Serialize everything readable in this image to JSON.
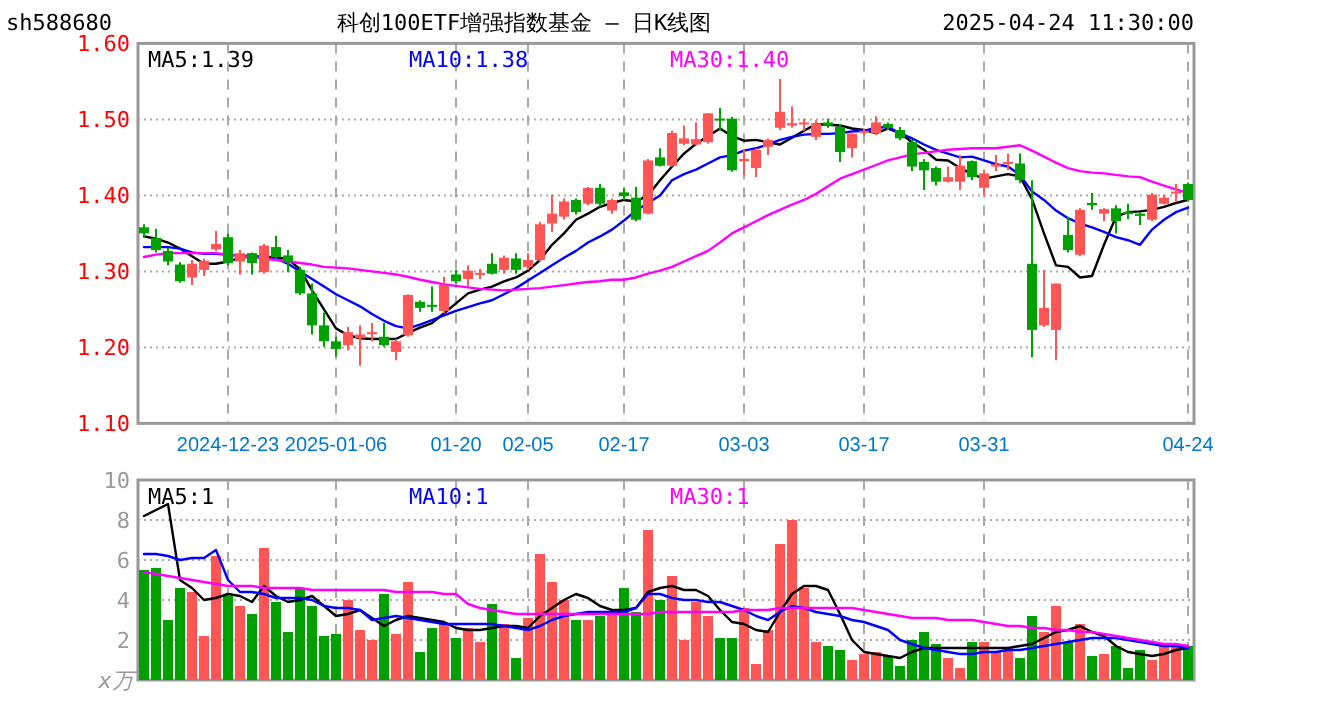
{
  "chart_data": [
    {
      "type": "candlestick",
      "title": "科创100ETF增强指数基金 — 日K线图",
      "annotations": [
        "sh588680",
        "2025-04-24 11:30:00"
      ],
      "categories": [
        null,
        null,
        null,
        null,
        null,
        null,
        null,
        "2024-12-23",
        null,
        null,
        null,
        null,
        null,
        null,
        null,
        null,
        "2025-01-06",
        null,
        null,
        null,
        null,
        null,
        null,
        null,
        null,
        null,
        "01-20",
        null,
        null,
        null,
        null,
        null,
        "02-05",
        null,
        null,
        null,
        null,
        null,
        null,
        null,
        "02-17",
        null,
        null,
        null,
        null,
        null,
        null,
        null,
        null,
        null,
        "03-03",
        null,
        null,
        null,
        null,
        null,
        null,
        null,
        null,
        null,
        "03-17",
        null,
        null,
        null,
        null,
        null,
        null,
        null,
        null,
        null,
        "03-31",
        null,
        null,
        null,
        null,
        null,
        null,
        null,
        null,
        null,
        null,
        null,
        null,
        null,
        null,
        null,
        null,
        "04-24"
      ],
      "ohlc": [
        [
          1.358,
          1.362,
          1.344,
          1.35
        ],
        [
          1.344,
          1.356,
          1.325,
          1.328
        ],
        [
          1.327,
          1.331,
          1.308,
          1.313
        ],
        [
          1.309,
          1.312,
          1.285,
          1.287
        ],
        [
          1.292,
          1.315,
          1.282,
          1.31
        ],
        [
          1.302,
          1.317,
          1.294,
          1.314
        ],
        [
          1.329,
          1.353,
          1.327,
          1.336
        ],
        [
          1.345,
          1.35,
          1.308,
          1.311
        ],
        [
          1.313,
          1.328,
          1.296,
          1.324
        ],
        [
          1.324,
          1.325,
          1.296,
          1.311
        ],
        [
          1.299,
          1.336,
          1.297,
          1.334
        ],
        [
          1.332,
          1.347,
          1.317,
          1.319
        ],
        [
          1.321,
          1.328,
          1.299,
          1.312
        ],
        [
          1.302,
          1.306,
          1.269,
          1.271
        ],
        [
          1.271,
          1.284,
          1.217,
          1.229
        ],
        [
          1.229,
          1.246,
          1.201,
          1.208
        ],
        [
          1.208,
          1.214,
          1.188,
          1.198
        ],
        [
          1.203,
          1.227,
          1.196,
          1.22
        ],
        [
          1.212,
          1.229,
          1.176,
          1.217
        ],
        [
          1.218,
          1.232,
          1.208,
          1.22
        ],
        [
          1.214,
          1.232,
          1.201,
          1.203
        ],
        [
          1.194,
          1.211,
          1.183,
          1.208
        ],
        [
          1.216,
          1.27,
          1.214,
          1.269
        ],
        [
          1.26,
          1.262,
          1.247,
          1.252
        ],
        [
          1.256,
          1.28,
          1.247,
          1.254
        ],
        [
          1.248,
          1.293,
          1.245,
          1.282
        ],
        [
          1.296,
          1.302,
          1.284,
          1.287
        ],
        [
          1.29,
          1.308,
          1.28,
          1.301
        ],
        [
          1.296,
          1.303,
          1.29,
          1.298
        ],
        [
          1.31,
          1.324,
          1.296,
          1.297
        ],
        [
          1.302,
          1.321,
          1.297,
          1.318
        ],
        [
          1.317,
          1.324,
          1.297,
          1.302
        ],
        [
          1.306,
          1.324,
          1.302,
          1.315
        ],
        [
          1.315,
          1.365,
          1.313,
          1.362
        ],
        [
          1.363,
          1.401,
          1.352,
          1.376
        ],
        [
          1.372,
          1.396,
          1.368,
          1.392
        ],
        [
          1.394,
          1.396,
          1.375,
          1.378
        ],
        [
          1.389,
          1.411,
          1.387,
          1.41
        ],
        [
          1.41,
          1.415,
          1.385,
          1.389
        ],
        [
          1.38,
          1.396,
          1.376,
          1.394
        ],
        [
          1.404,
          1.41,
          1.394,
          1.399
        ],
        [
          1.397,
          1.411,
          1.366,
          1.368
        ],
        [
          1.376,
          1.448,
          1.375,
          1.446
        ],
        [
          1.45,
          1.462,
          1.438,
          1.439
        ],
        [
          1.439,
          1.485,
          1.438,
          1.482
        ],
        [
          1.468,
          1.492,
          1.466,
          1.475
        ],
        [
          1.467,
          1.496,
          1.466,
          1.474
        ],
        [
          1.47,
          1.508,
          1.468,
          1.508
        ],
        [
          1.501,
          1.515,
          1.485,
          1.499
        ],
        [
          1.501,
          1.503,
          1.431,
          1.433
        ],
        [
          1.445,
          1.46,
          1.427,
          1.448
        ],
        [
          1.436,
          1.462,
          1.424,
          1.46
        ],
        [
          1.464,
          1.475,
          1.453,
          1.473
        ],
        [
          1.489,
          1.553,
          1.486,
          1.51
        ],
        [
          1.492,
          1.517,
          1.489,
          1.495
        ],
        [
          1.494,
          1.501,
          1.485,
          1.496
        ],
        [
          1.477,
          1.499,
          1.473,
          1.495
        ],
        [
          1.496,
          1.501,
          1.489,
          1.492
        ],
        [
          1.49,
          1.494,
          1.444,
          1.457
        ],
        [
          1.462,
          1.483,
          1.45,
          1.481
        ],
        [
          1.483,
          1.488,
          1.479,
          1.485
        ],
        [
          1.482,
          1.504,
          1.479,
          1.496
        ],
        [
          1.494,
          1.496,
          1.486,
          1.489
        ],
        [
          1.486,
          1.49,
          1.473,
          1.475
        ],
        [
          1.47,
          1.473,
          1.432,
          1.438
        ],
        [
          1.444,
          1.448,
          1.407,
          1.433
        ],
        [
          1.436,
          1.438,
          1.413,
          1.418
        ],
        [
          1.418,
          1.438,
          1.417,
          1.424
        ],
        [
          1.418,
          1.453,
          1.407,
          1.439
        ],
        [
          1.445,
          1.446,
          1.42,
          1.424
        ],
        [
          1.41,
          1.433,
          1.401,
          1.429
        ],
        [
          1.438,
          1.453,
          1.432,
          1.441
        ],
        [
          1.442,
          1.455,
          1.433,
          1.444
        ],
        [
          1.442,
          1.455,
          1.416,
          1.42
        ],
        [
          1.31,
          1.42,
          1.187,
          1.223
        ],
        [
          1.229,
          1.302,
          1.227,
          1.252
        ],
        [
          1.223,
          1.284,
          1.183,
          1.284
        ],
        [
          1.348,
          1.372,
          1.325,
          1.328
        ],
        [
          1.322,
          1.383,
          1.32,
          1.381
        ],
        [
          1.39,
          1.403,
          1.381,
          1.387
        ],
        [
          1.376,
          1.383,
          1.366,
          1.382
        ],
        [
          1.383,
          1.387,
          1.35,
          1.366
        ],
        [
          1.378,
          1.389,
          1.369,
          1.376
        ],
        [
          1.376,
          1.378,
          1.361,
          1.373
        ],
        [
          1.368,
          1.403,
          1.366,
          1.401
        ],
        [
          1.389,
          1.401,
          1.388,
          1.397
        ],
        [
          1.403,
          1.415,
          1.392,
          1.405
        ],
        [
          1.415,
          1.417,
          1.392,
          1.394
        ]
      ],
      "colors": [
        "#00a000",
        "#00a000",
        "#00a000",
        "#00a000",
        "#ff5555",
        "#ff5555",
        "#ff5555",
        "#00a000",
        "#ff5555",
        "#00a000",
        "#ff5555",
        "#00a000",
        "#00a000",
        "#00a000",
        "#00a000",
        "#00a000",
        "#00a000",
        "#ff5555",
        "#ff5555",
        "#ff5555",
        "#00a000",
        "#ff5555",
        "#ff5555",
        "#00a000",
        "#00a000",
        "#ff5555",
        "#00a000",
        "#ff5555",
        "#ff5555",
        "#00a000",
        "#ff5555",
        "#00a000",
        "#ff5555",
        "#ff5555",
        "#ff5555",
        "#ff5555",
        "#00a000",
        "#ff5555",
        "#00a000",
        "#ff5555",
        "#00a000",
        "#00a000",
        "#ff5555",
        "#00a000",
        "#ff5555",
        "#ff5555",
        "#ff5555",
        "#ff5555",
        "#00a000",
        "#00a000",
        "#ff5555",
        "#ff5555",
        "#ff5555",
        "#ff5555",
        "#ff5555",
        "#ff5555",
        "#ff5555",
        "#00a000",
        "#00a000",
        "#ff5555",
        "#ff5555",
        "#ff5555",
        "#00a000",
        "#00a000",
        "#00a000",
        "#00a000",
        "#00a000",
        "#ff5555",
        "#ff5555",
        "#00a000",
        "#ff5555",
        "#ff5555",
        "#ff5555",
        "#00a000",
        "#00a000",
        "#ff5555",
        "#ff5555",
        "#00a000",
        "#ff5555",
        "#00a000",
        "#ff5555",
        "#00a000",
        "#00a000",
        "#00a000",
        "#ff5555",
        "#ff5555",
        "#ff5555",
        "#00a000"
      ],
      "series": [
        {
          "type": "line",
          "name": "MA5:1.39",
          "color": "#000000",
          "values": [
            1.346,
            1.343,
            1.338,
            1.33,
            1.32,
            1.31,
            1.31,
            1.313,
            1.318,
            1.32,
            1.319,
            1.319,
            1.316,
            1.303,
            1.275,
            1.25,
            1.225,
            1.216,
            1.212,
            1.211,
            1.211,
            1.211,
            1.219,
            1.226,
            1.232,
            1.245,
            1.258,
            1.271,
            1.276,
            1.28,
            1.287,
            1.292,
            1.301,
            1.315,
            1.335,
            1.35,
            1.368,
            1.376,
            1.385,
            1.39,
            1.394,
            1.392,
            1.4,
            1.42,
            1.438,
            1.455,
            1.468,
            1.478,
            1.488,
            1.478,
            1.472,
            1.473,
            1.47,
            1.467,
            1.476,
            1.485,
            1.494,
            1.493,
            1.492,
            1.488,
            1.486,
            1.482,
            1.488,
            1.482,
            1.47,
            1.46,
            1.447,
            1.446,
            1.436,
            1.428,
            1.422,
            1.425,
            1.428,
            1.425,
            1.395,
            1.35,
            1.308,
            1.306,
            1.292,
            1.294,
            1.335,
            1.372,
            1.378,
            1.379,
            1.381,
            1.385,
            1.39,
            1.394
          ]
        },
        {
          "type": "line",
          "name": "MA10:1.38",
          "color": "#0000ff",
          "values": [
            1.332,
            1.332,
            1.332,
            1.33,
            1.325,
            1.323,
            1.323,
            1.322,
            1.321,
            1.32,
            1.318,
            1.317,
            1.31,
            1.3,
            1.29,
            1.28,
            1.27,
            1.262,
            1.254,
            1.244,
            1.235,
            1.228,
            1.225,
            1.23,
            1.236,
            1.242,
            1.248,
            1.253,
            1.258,
            1.262,
            1.27,
            1.278,
            1.288,
            1.298,
            1.308,
            1.318,
            1.327,
            1.338,
            1.346,
            1.355,
            1.367,
            1.38,
            1.39,
            1.4,
            1.42,
            1.428,
            1.434,
            1.442,
            1.45,
            1.453,
            1.459,
            1.462,
            1.467,
            1.473,
            1.477,
            1.48,
            1.481,
            1.481,
            1.482,
            1.484,
            1.485,
            1.489,
            1.49,
            1.482,
            1.475,
            1.467,
            1.46,
            1.455,
            1.45,
            1.451,
            1.446,
            1.441,
            1.438,
            1.427,
            1.405,
            1.394,
            1.38,
            1.37,
            1.363,
            1.358,
            1.352,
            1.345,
            1.341,
            1.335,
            1.355,
            1.368,
            1.378,
            1.384
          ]
        },
        {
          "type": "line",
          "name": "MA30:1.40",
          "color": "#ff00ff",
          "values": [
            1.319,
            1.322,
            1.324,
            1.324,
            1.324,
            1.324,
            1.324,
            1.322,
            1.32,
            1.319,
            1.317,
            1.315,
            1.313,
            1.311,
            1.309,
            1.306,
            1.305,
            1.304,
            1.302,
            1.3,
            1.298,
            1.296,
            1.293,
            1.289,
            1.286,
            1.283,
            1.281,
            1.279,
            1.277,
            1.276,
            1.275,
            1.276,
            1.277,
            1.278,
            1.28,
            1.282,
            1.284,
            1.286,
            1.287,
            1.289,
            1.289,
            1.292,
            1.297,
            1.301,
            1.306,
            1.313,
            1.32,
            1.327,
            1.338,
            1.35,
            1.358,
            1.366,
            1.374,
            1.381,
            1.388,
            1.394,
            1.402,
            1.412,
            1.422,
            1.428,
            1.434,
            1.44,
            1.446,
            1.45,
            1.454,
            1.456,
            1.458,
            1.46,
            1.461,
            1.462,
            1.462,
            1.462,
            1.464,
            1.466,
            1.459,
            1.451,
            1.443,
            1.436,
            1.432,
            1.43,
            1.429,
            1.427,
            1.425,
            1.424,
            1.418,
            1.413,
            1.408,
            1.403
          ]
        }
      ],
      "ylim": [
        1.1,
        1.6
      ],
      "yticks": [
        {
          "value": 1.1,
          "label": "1.10"
        },
        {
          "value": 1.2,
          "label": "1.20"
        },
        {
          "value": 1.3,
          "label": "1.30"
        },
        {
          "value": 1.4,
          "label": "1.40"
        },
        {
          "value": 1.5,
          "label": "1.50"
        },
        {
          "value": 1.6,
          "label": "1.60"
        }
      ],
      "grid": true,
      "legend": "top"
    },
    {
      "type": "bar",
      "ylabel": "x万",
      "categories": [
        null,
        null,
        null,
        null,
        null,
        null,
        null,
        null,
        null,
        null,
        null,
        null,
        null,
        null,
        null,
        null,
        null,
        null,
        null,
        null,
        null,
        null,
        null,
        null,
        null,
        null,
        null,
        null,
        null,
        null,
        null,
        null,
        null,
        null,
        null,
        null,
        null,
        null,
        null,
        null,
        null,
        null,
        null,
        null,
        null,
        null,
        null,
        null,
        null,
        null,
        null,
        null,
        null,
        null,
        null,
        null,
        null,
        null,
        null,
        null,
        null,
        null,
        null,
        null,
        null,
        null,
        null,
        null,
        null,
        null,
        null,
        null,
        null,
        null,
        null,
        null,
        null,
        null,
        null,
        null,
        null,
        null,
        null,
        null,
        null,
        null,
        null,
        null
      ],
      "series": [
        {
          "type": "bar",
          "colors": [
            "#00a000",
            "#00a000",
            "#00a000",
            "#00a000",
            "#ff5555",
            "#ff5555",
            "#ff5555",
            "#00a000",
            "#ff5555",
            "#00a000",
            "#ff5555",
            "#00a000",
            "#00a000",
            "#00a000",
            "#00a000",
            "#00a000",
            "#00a000",
            "#ff5555",
            "#ff5555",
            "#ff5555",
            "#00a000",
            "#ff5555",
            "#ff5555",
            "#00a000",
            "#00a000",
            "#ff5555",
            "#00a000",
            "#ff5555",
            "#ff5555",
            "#00a000",
            "#ff5555",
            "#00a000",
            "#ff5555",
            "#ff5555",
            "#ff5555",
            "#ff5555",
            "#00a000",
            "#ff5555",
            "#00a000",
            "#ff5555",
            "#00a000",
            "#00a000",
            "#ff5555",
            "#00a000",
            "#ff5555",
            "#ff5555",
            "#ff5555",
            "#ff5555",
            "#00a000",
            "#00a000",
            "#ff5555",
            "#ff5555",
            "#ff5555",
            "#ff5555",
            "#ff5555",
            "#ff5555",
            "#ff5555",
            "#00a000",
            "#00a000",
            "#ff5555",
            "#ff5555",
            "#ff5555",
            "#00a000",
            "#00a000",
            "#00a000",
            "#00a000",
            "#00a000",
            "#ff5555",
            "#ff5555",
            "#00a000",
            "#ff5555",
            "#ff5555",
            "#ff5555",
            "#00a000",
            "#00a000",
            "#ff5555",
            "#ff5555",
            "#00a000",
            "#ff5555",
            "#00a000",
            "#ff5555",
            "#00a000",
            "#00a000",
            "#00a000",
            "#ff5555",
            "#ff5555",
            "#ff5555",
            "#00a000"
          ],
          "values": [
            5.5,
            5.6,
            3.0,
            4.6,
            4.4,
            2.2,
            6.2,
            4.2,
            3.7,
            3.3,
            6.6,
            3.9,
            2.4,
            4.6,
            3.7,
            2.2,
            2.3,
            4.0,
            2.5,
            2.0,
            4.3,
            2.3,
            4.9,
            1.4,
            2.6,
            2.8,
            2.1,
            2.6,
            1.9,
            3.8,
            2.8,
            1.1,
            3.1,
            6.3,
            4.9,
            4.0,
            3.0,
            3.0,
            3.2,
            3.3,
            4.6,
            3.4,
            7.5,
            4.0,
            5.2,
            2.0,
            3.9,
            3.2,
            2.1,
            2.1,
            3.6,
            0.8,
            2.5,
            6.8,
            8.0,
            4.6,
            1.9,
            1.7,
            1.5,
            1.0,
            1.3,
            1.4,
            1.2,
            0.7,
            2.0,
            2.4,
            1.8,
            1.1,
            0.6,
            1.9,
            1.9,
            1.4,
            1.6,
            1.1,
            3.2,
            2.4,
            3.7,
            1.9,
            2.8,
            1.2,
            1.3,
            1.7,
            0.6,
            1.5,
            1.0,
            1.7,
            1.8,
            1.7
          ]
        },
        {
          "type": "line",
          "name": "MA5:1",
          "color": "#000000",
          "values": [
            8.2,
            8.5,
            8.8,
            5.0,
            4.6,
            4.0,
            4.1,
            4.3,
            4.2,
            3.9,
            4.7,
            4.2,
            3.9,
            4.0,
            4.2,
            3.7,
            3.2,
            3.3,
            3.5,
            3.1,
            2.7,
            3.0,
            3.2,
            3.1,
            3.0,
            2.9,
            2.6,
            2.5,
            2.5,
            2.6,
            2.7,
            2.7,
            2.6,
            3.2,
            3.6,
            4.0,
            4.3,
            4.1,
            3.7,
            3.5,
            3.5,
            3.6,
            4.4,
            4.6,
            4.7,
            4.5,
            4.5,
            4.2,
            3.5,
            2.9,
            2.8,
            2.5,
            2.4,
            3.4,
            4.3,
            4.7,
            4.7,
            4.5,
            3.3,
            2.0,
            1.4,
            1.3,
            1.2,
            1.1,
            1.4,
            1.6,
            1.6,
            1.6,
            1.6,
            1.6,
            1.6,
            1.6,
            1.6,
            1.7,
            1.8,
            2.1,
            2.4,
            2.5,
            2.7,
            2.4,
            2.2,
            1.7,
            1.4,
            1.3,
            1.2,
            1.3,
            1.5,
            1.6
          ]
        },
        {
          "type": "line",
          "name": "MA10:1",
          "color": "#0000ff",
          "values": [
            6.3,
            6.3,
            6.2,
            6.0,
            6.1,
            6.1,
            6.5,
            5.0,
            4.4,
            4.4,
            4.3,
            4.1,
            4.1,
            4.1,
            4.0,
            3.7,
            3.6,
            3.6,
            3.5,
            3.0,
            3.1,
            3.2,
            3.1,
            3.0,
            2.9,
            2.8,
            2.8,
            2.8,
            2.8,
            2.8,
            2.7,
            2.6,
            2.5,
            2.7,
            3.0,
            3.2,
            3.3,
            3.4,
            3.4,
            3.4,
            3.4,
            3.6,
            4.3,
            4.3,
            4.1,
            4.0,
            4.0,
            3.9,
            3.9,
            3.7,
            3.5,
            3.2,
            3.0,
            3.4,
            3.7,
            3.6,
            3.4,
            3.3,
            3.2,
            3.0,
            2.9,
            2.7,
            2.5,
            2.0,
            1.8,
            1.6,
            1.5,
            1.4,
            1.3,
            1.3,
            1.4,
            1.4,
            1.5,
            1.5,
            1.6,
            1.7,
            1.8,
            1.9,
            2.0,
            2.1,
            2.1,
            2.1,
            2.0,
            1.9,
            1.8,
            1.7,
            1.7,
            1.6
          ]
        },
        {
          "type": "line",
          "name": "MA30:1",
          "color": "#ff00ff",
          "values": [
            5.4,
            5.3,
            5.2,
            5.1,
            5.0,
            4.9,
            4.8,
            4.7,
            4.7,
            4.7,
            4.6,
            4.6,
            4.6,
            4.6,
            4.5,
            4.5,
            4.5,
            4.5,
            4.5,
            4.5,
            4.5,
            4.4,
            4.4,
            4.4,
            4.4,
            4.3,
            4.3,
            3.8,
            3.6,
            3.5,
            3.4,
            3.3,
            3.3,
            3.3,
            3.3,
            3.3,
            3.3,
            3.3,
            3.3,
            3.3,
            3.3,
            3.3,
            3.3,
            3.4,
            3.4,
            3.4,
            3.4,
            3.4,
            3.4,
            3.4,
            3.5,
            3.5,
            3.5,
            3.6,
            3.6,
            3.6,
            3.6,
            3.6,
            3.6,
            3.6,
            3.5,
            3.4,
            3.3,
            3.2,
            3.1,
            3.1,
            3.1,
            3.0,
            3.0,
            3.0,
            2.9,
            2.8,
            2.7,
            2.7,
            2.6,
            2.6,
            2.5,
            2.5,
            2.4,
            2.4,
            2.3,
            2.2,
            2.1,
            2.0,
            1.9,
            1.8,
            1.8,
            1.7
          ]
        }
      ],
      "ylim": [
        0,
        10
      ],
      "yticks": [
        2,
        4,
        6,
        8,
        10
      ],
      "grid": true,
      "legend": "top",
      "tick_labels": "y"
    }
  ]
}
